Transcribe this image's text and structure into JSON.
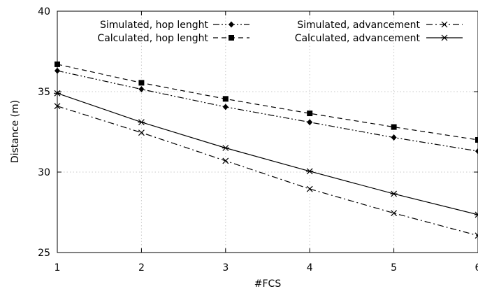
{
  "chart_data": {
    "type": "line",
    "xlabel": "#FCS",
    "ylabel": "Distance (m)",
    "xlim": [
      1,
      6
    ],
    "ylim": [
      25,
      40
    ],
    "x_ticks": [
      "1",
      "2",
      "3",
      "4",
      "5",
      "6"
    ],
    "y_ticks": [
      "25",
      "30",
      "35",
      "40"
    ],
    "grid": true,
    "legend_position": "top",
    "x": [
      1,
      2,
      3,
      4,
      5,
      6
    ],
    "series": [
      {
        "name": "Simulated, hop lenght",
        "values": [
          36.3,
          35.15,
          34.05,
          33.1,
          32.15,
          31.3
        ],
        "marker": "diamond",
        "line_style": "dash-dot-dot",
        "color": "#000000"
      },
      {
        "name": "Calculated, hop lenght",
        "values": [
          36.7,
          35.55,
          34.55,
          33.65,
          32.8,
          32.0
        ],
        "marker": "square",
        "line_style": "dashed",
        "color": "#000000"
      },
      {
        "name": "Simulated, advancement",
        "values": [
          34.1,
          32.45,
          30.7,
          28.95,
          27.45,
          26.05
        ],
        "marker": "cross",
        "line_style": "dash-dot",
        "color": "#000000"
      },
      {
        "name": "Calculated, advancement",
        "values": [
          34.9,
          33.1,
          31.5,
          30.05,
          28.65,
          27.35
        ],
        "marker": "star",
        "line_style": "solid",
        "color": "#000000"
      }
    ]
  }
}
